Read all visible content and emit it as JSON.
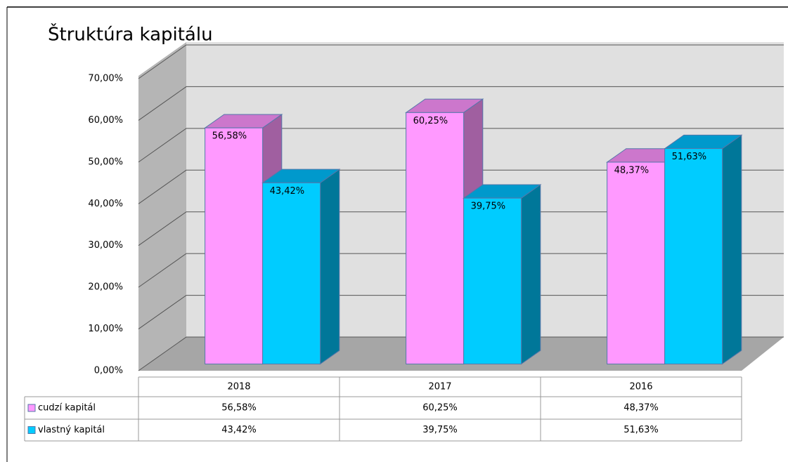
{
  "chart_data": {
    "type": "bar3d",
    "title": "Štruktúra kapitálu",
    "categories": [
      "2018",
      "2017",
      "2016"
    ],
    "series": [
      {
        "name": "cudzí kapitál",
        "color": "#ff99ff",
        "values": [
          56.58,
          60.25,
          48.37
        ],
        "value_labels": [
          "56,58%",
          "60,25%",
          "48,37%"
        ]
      },
      {
        "name": "vlastný kapitál",
        "color": "#00ccff",
        "values": [
          43.42,
          39.75,
          51.63
        ],
        "value_labels": [
          "43,42%",
          "39,75%",
          "51,63%"
        ]
      }
    ],
    "ylim": [
      0,
      70
    ],
    "yticks": [
      {
        "value": 0,
        "label": "0,00%"
      },
      {
        "value": 10,
        "label": "10,00%"
      },
      {
        "value": 20,
        "label": "20,00%"
      },
      {
        "value": 30,
        "label": "30,00%"
      },
      {
        "value": 40,
        "label": "40,00%"
      },
      {
        "value": 50,
        "label": "50,00%"
      },
      {
        "value": 60,
        "label": "60,00%"
      },
      {
        "value": 70,
        "label": "70,00%"
      }
    ],
    "grid": true
  }
}
